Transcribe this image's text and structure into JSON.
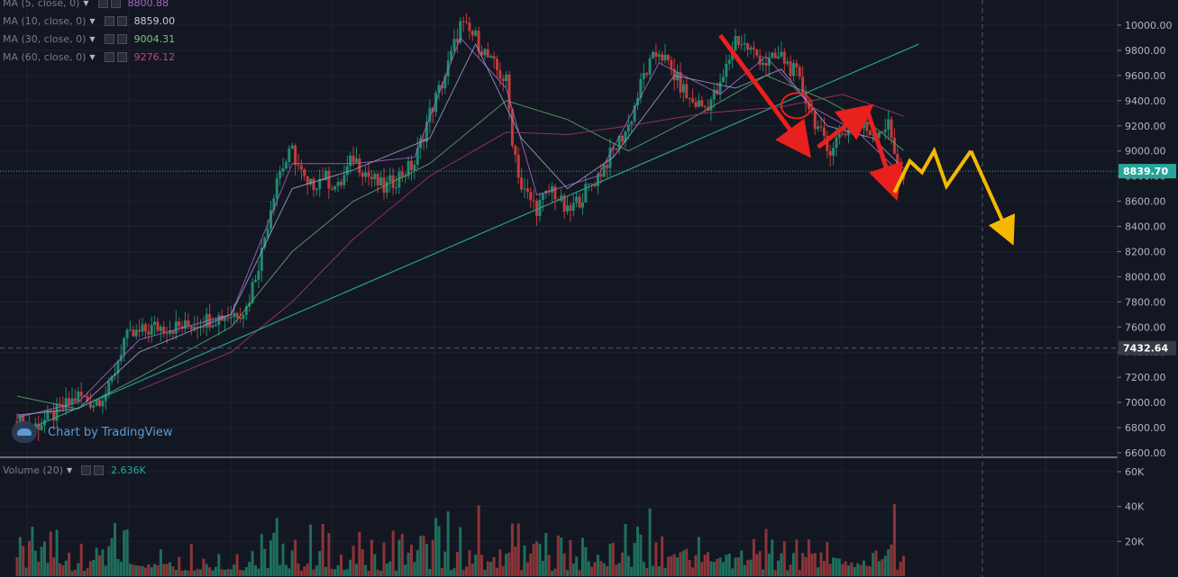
{
  "colors": {
    "background": "#131722",
    "grid": "#1e2230",
    "up_candle": "#1f8a70",
    "down_candle": "#c23b3b",
    "ma5": "#a867c6",
    "ma10": "#9a9fc9",
    "ma30": "#5ca86a",
    "ma60": "#a03a6a",
    "trendline": "#2a9d8f",
    "price_line": "#26a69a",
    "volume_up": "#1f6f5c",
    "volume_down": "#8c3437",
    "arrow_red": "#e8201e",
    "arrow_yellow": "#f5b800"
  },
  "indicators": [
    {
      "label": "MA (5, close, 0)",
      "value": "8800.88",
      "color": "#a867c6"
    },
    {
      "label": "MA (10, close, 0)",
      "value": "8859.00",
      "color": "#c8cce0"
    },
    {
      "label": "MA (30, close, 0)",
      "value": "9004.31",
      "color": "#7bc47f"
    },
    {
      "label": "MA (60, close, 0)",
      "value": "9276.12",
      "color": "#c2457f"
    }
  ],
  "volume_indicator": {
    "label": "Volume (20)",
    "value": "2.636K",
    "color": "#26a69a"
  },
  "watermark": "Chart by TradingView",
  "current_price_label": "8839.70",
  "crosshair_price_label": "7432.64",
  "chart_data": {
    "type": "candlestick",
    "price_axis": {
      "ticks": [
        10000,
        9800,
        9600,
        9400,
        9200,
        9000,
        8800,
        8600,
        8400,
        8200,
        8000,
        7800,
        7600,
        7400,
        7200,
        7000,
        6800,
        6600
      ],
      "tick_labels": [
        "10000.00",
        "9800.00",
        "9600.00",
        "9400.00",
        "9200.00",
        "9000.00",
        "8800.00",
        "8600.00",
        "8400.00",
        "8200.00",
        "8000.00",
        "7800.00",
        "7600.00",
        "7400.00",
        "7200.00",
        "7000.00",
        "6800.00",
        "6600.00"
      ],
      "range": [
        6600,
        10000
      ]
    },
    "volume_axis": {
      "ticks": [
        60000,
        40000,
        20000
      ],
      "tick_labels": [
        "60K",
        "40K",
        "20K"
      ]
    },
    "current_price": 8839.7,
    "crosshair_price": 7432.64,
    "price_path": [
      [
        0,
        6850
      ],
      [
        5,
        6800
      ],
      [
        12,
        6900
      ],
      [
        20,
        7050
      ],
      [
        25,
        7000
      ],
      [
        30,
        7100
      ],
      [
        35,
        7500
      ],
      [
        40,
        7550
      ],
      [
        45,
        7600
      ],
      [
        55,
        7600
      ],
      [
        60,
        7650
      ],
      [
        70,
        7700
      ],
      [
        75,
        7750
      ],
      [
        80,
        8200
      ],
      [
        85,
        8800
      ],
      [
        90,
        9000
      ],
      [
        95,
        8700
      ],
      [
        100,
        8800
      ],
      [
        105,
        8700
      ],
      [
        110,
        8950
      ],
      [
        115,
        8800
      ],
      [
        120,
        8700
      ],
      [
        125,
        8800
      ],
      [
        130,
        8900
      ],
      [
        135,
        9300
      ],
      [
        140,
        9600
      ],
      [
        145,
        10000
      ],
      [
        150,
        9900
      ],
      [
        155,
        9700
      ],
      [
        160,
        9550
      ],
      [
        162,
        9100
      ],
      [
        165,
        8700
      ],
      [
        170,
        8550
      ],
      [
        175,
        8700
      ],
      [
        180,
        8500
      ],
      [
        185,
        8650
      ],
      [
        190,
        8800
      ],
      [
        195,
        9000
      ],
      [
        200,
        9200
      ],
      [
        205,
        9600
      ],
      [
        210,
        9800
      ],
      [
        215,
        9600
      ],
      [
        220,
        9400
      ],
      [
        225,
        9350
      ],
      [
        230,
        9500
      ],
      [
        235,
        9900
      ],
      [
        240,
        9800
      ],
      [
        245,
        9700
      ],
      [
        250,
        9750
      ],
      [
        255,
        9600
      ],
      [
        260,
        9300
      ],
      [
        265,
        9000
      ],
      [
        270,
        9150
      ],
      [
        275,
        9200
      ],
      [
        280,
        9150
      ],
      [
        285,
        9200
      ],
      [
        288,
        8900
      ],
      [
        290,
        8750
      ]
    ],
    "moving_averages": [
      {
        "name": "MA (5, close, 0)",
        "points": [
          [
            0,
            6880
          ],
          [
            20,
            7000
          ],
          [
            40,
            7500
          ],
          [
            70,
            7700
          ],
          [
            90,
            8900
          ],
          [
            110,
            8900
          ],
          [
            130,
            8950
          ],
          [
            145,
            9900
          ],
          [
            160,
            9500
          ],
          [
            170,
            8650
          ],
          [
            190,
            8800
          ],
          [
            210,
            9700
          ],
          [
            230,
            9450
          ],
          [
            245,
            9750
          ],
          [
            260,
            9350
          ],
          [
            275,
            9150
          ],
          [
            290,
            8800
          ]
        ]
      },
      {
        "name": "MA (10, close, 0)",
        "points": [
          [
            0,
            6900
          ],
          [
            20,
            6950
          ],
          [
            40,
            7400
          ],
          [
            70,
            7700
          ],
          [
            90,
            8700
          ],
          [
            110,
            8850
          ],
          [
            135,
            9100
          ],
          [
            150,
            9850
          ],
          [
            165,
            9100
          ],
          [
            180,
            8700
          ],
          [
            195,
            8950
          ],
          [
            215,
            9600
          ],
          [
            235,
            9500
          ],
          [
            250,
            9650
          ],
          [
            265,
            9200
          ],
          [
            280,
            9100
          ],
          [
            290,
            8860
          ]
        ]
      },
      {
        "name": "MA (30, close, 0)",
        "points": [
          [
            0,
            7050
          ],
          [
            20,
            6950
          ],
          [
            40,
            7200
          ],
          [
            70,
            7600
          ],
          [
            90,
            8200
          ],
          [
            110,
            8600
          ],
          [
            135,
            8900
          ],
          [
            160,
            9400
          ],
          [
            180,
            9250
          ],
          [
            200,
            9000
          ],
          [
            220,
            9250
          ],
          [
            245,
            9600
          ],
          [
            265,
            9400
          ],
          [
            280,
            9200
          ],
          [
            290,
            9004
          ]
        ]
      },
      {
        "name": "MA (60, close, 0)",
        "points": [
          [
            40,
            7100
          ],
          [
            70,
            7400
          ],
          [
            90,
            7800
          ],
          [
            110,
            8300
          ],
          [
            135,
            8800
          ],
          [
            160,
            9150
          ],
          [
            180,
            9130
          ],
          [
            200,
            9200
          ],
          [
            225,
            9300
          ],
          [
            250,
            9350
          ],
          [
            270,
            9450
          ],
          [
            290,
            9276
          ]
        ]
      }
    ],
    "trendline": [
      [
        5,
        6800
      ],
      [
        295,
        9850
      ]
    ],
    "annotations": [
      {
        "type": "arrow",
        "color": "red",
        "points": [
          [
            230,
            9920
          ],
          [
            258,
            9000
          ]
        ]
      },
      {
        "type": "arrow",
        "color": "red",
        "points": [
          [
            262,
            9030
          ],
          [
            278,
            9330
          ]
        ]
      },
      {
        "type": "arrow",
        "color": "red",
        "points": [
          [
            278,
            9330
          ],
          [
            287,
            8670
          ]
        ]
      },
      {
        "type": "zigzag",
        "color": "yellow",
        "points": [
          [
            287,
            8670
          ],
          [
            292,
            8920
          ],
          [
            296,
            8830
          ],
          [
            300,
            9000
          ],
          [
            304,
            8720
          ],
          [
            312,
            9000
          ]
        ]
      },
      {
        "type": "arrow",
        "color": "yellow",
        "points": [
          [
            312,
            9000
          ],
          [
            325,
            8300
          ]
        ]
      },
      {
        "type": "circle",
        "color": "red",
        "center": [
          255,
          9360
        ]
      }
    ]
  }
}
